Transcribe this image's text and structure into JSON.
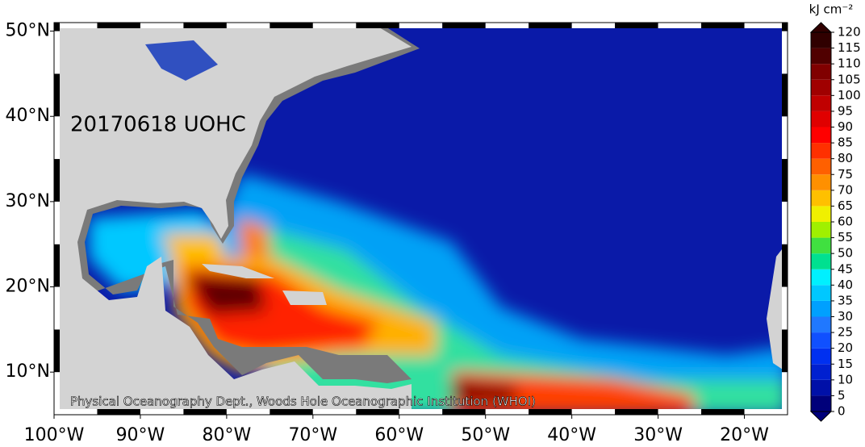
{
  "map": {
    "title": "20170618 UOHC",
    "credit": "Physical Oceanography Dept., Woods Hole Oceanographic Institution (WHOI)",
    "xlim": [
      -100,
      -15
    ],
    "ylim": [
      5,
      51
    ],
    "xticks": [
      {
        "value": -100,
        "label": "100°W"
      },
      {
        "value": -90,
        "label": "90°W"
      },
      {
        "value": -80,
        "label": "80°W"
      },
      {
        "value": -70,
        "label": "70°W"
      },
      {
        "value": -60,
        "label": "60°W"
      },
      {
        "value": -50,
        "label": "50°W"
      },
      {
        "value": -40,
        "label": "40°W"
      },
      {
        "value": -30,
        "label": "30°W"
      },
      {
        "value": -20,
        "label": "20°W"
      }
    ],
    "yticks": [
      {
        "value": 10,
        "label": "10°N"
      },
      {
        "value": 20,
        "label": "20°N"
      },
      {
        "value": 30,
        "label": "30°N"
      },
      {
        "value": 40,
        "label": "40°N"
      },
      {
        "value": 50,
        "label": "50°N"
      }
    ],
    "colorbar": {
      "label": "kJ cm⁻²",
      "lim": [
        0,
        120
      ],
      "ticks": [
        0,
        5,
        10,
        15,
        20,
        25,
        30,
        35,
        40,
        45,
        50,
        55,
        60,
        65,
        70,
        75,
        80,
        85,
        90,
        95,
        100,
        105,
        110,
        115,
        120
      ],
      "colors": [
        "#00007a",
        "#0010a8",
        "#0020d0",
        "#0030f0",
        "#1050ff",
        "#2078ff",
        "#00a0ff",
        "#00c8ff",
        "#00f0ff",
        "#00e090",
        "#40e040",
        "#a0f000",
        "#f0f000",
        "#ffc000",
        "#ff9000",
        "#ff6000",
        "#ff3000",
        "#ff0000",
        "#e00000",
        "#c00000",
        "#a00000",
        "#800000",
        "#500000",
        "#300000"
      ]
    }
  }
}
